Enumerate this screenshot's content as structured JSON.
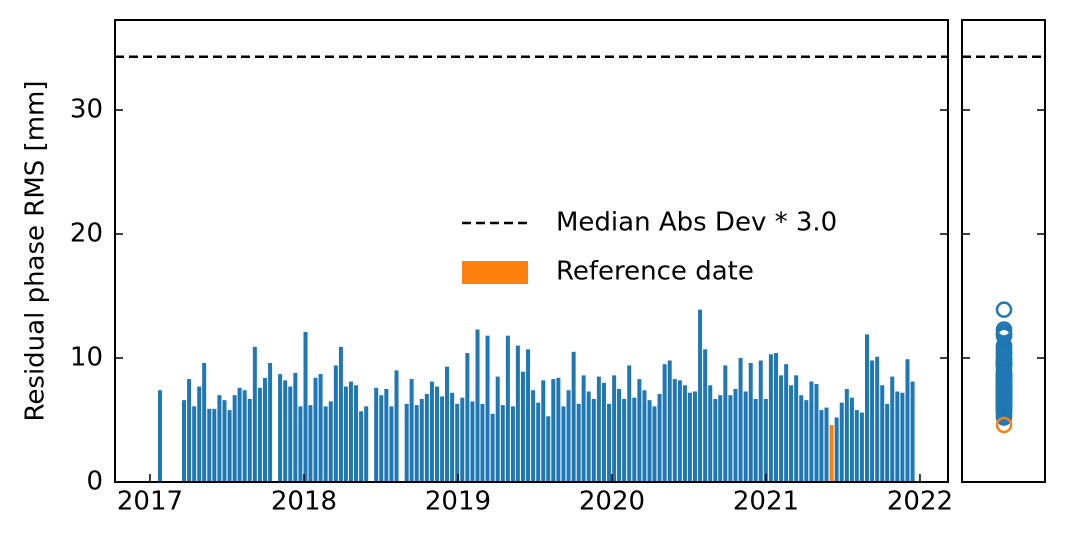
{
  "chart_data": {
    "type": "bar",
    "ylabel": "Residual phase RMS [mm]",
    "xlim": [
      2016.773,
      2022.182
    ],
    "ylim": [
      0,
      37.26
    ],
    "xticks": [
      2017,
      2018,
      2019,
      2020,
      2021,
      2022
    ],
    "yticks": [
      0,
      10,
      20,
      30
    ],
    "color": "#1f77b4",
    "x": [
      2017.065,
      2017.221,
      2017.254,
      2017.287,
      2017.32,
      2017.352,
      2017.385,
      2017.418,
      2017.451,
      2017.484,
      2017.517,
      2017.55,
      2017.582,
      2017.615,
      2017.648,
      2017.681,
      2017.714,
      2017.747,
      2017.78,
      2017.845,
      2017.878,
      2017.911,
      2017.944,
      2017.977,
      2018.01,
      2018.042,
      2018.075,
      2018.108,
      2018.141,
      2018.174,
      2018.207,
      2018.24,
      2018.272,
      2018.305,
      2018.338,
      2018.371,
      2018.404,
      2018.469,
      2018.502,
      2018.535,
      2018.568,
      2018.601,
      2018.667,
      2018.699,
      2018.732,
      2018.765,
      2018.798,
      2018.831,
      2018.864,
      2018.897,
      2018.929,
      2018.962,
      2018.995,
      2019.028,
      2019.061,
      2019.094,
      2019.127,
      2019.159,
      2019.192,
      2019.225,
      2019.258,
      2019.291,
      2019.324,
      2019.357,
      2019.389,
      2019.422,
      2019.455,
      2019.488,
      2019.521,
      2019.554,
      2019.586,
      2019.619,
      2019.652,
      2019.685,
      2019.718,
      2019.751,
      2019.784,
      2019.816,
      2019.849,
      2019.882,
      2019.915,
      2019.948,
      2019.981,
      2020.014,
      2020.046,
      2020.079,
      2020.112,
      2020.145,
      2020.178,
      2020.211,
      2020.244,
      2020.276,
      2020.309,
      2020.342,
      2020.375,
      2020.408,
      2020.441,
      2020.474,
      2020.506,
      2020.539,
      2020.572,
      2020.605,
      2020.638,
      2020.671,
      2020.703,
      2020.736,
      2020.769,
      2020.802,
      2020.835,
      2020.868,
      2020.901,
      2020.933,
      2020.966,
      2020.999,
      2021.032,
      2021.065,
      2021.098,
      2021.131,
      2021.163,
      2021.196,
      2021.229,
      2021.262,
      2021.295,
      2021.328,
      2021.36,
      2021.393,
      2021.459,
      2021.492,
      2021.525,
      2021.558,
      2021.59,
      2021.623,
      2021.656,
      2021.689,
      2021.722,
      2021.755,
      2021.787,
      2021.82,
      2021.853,
      2021.886,
      2021.919,
      2021.952
    ],
    "values": [
      7.4,
      6.6,
      8.3,
      6.1,
      7.7,
      9.6,
      5.9,
      5.9,
      7.0,
      6.6,
      5.8,
      7.0,
      7.6,
      7.4,
      6.7,
      10.9,
      7.6,
      8.4,
      9.6,
      8.7,
      8.2,
      7.7,
      8.8,
      6.1,
      12.1,
      6.2,
      8.4,
      8.7,
      6.1,
      6.5,
      9.4,
      10.9,
      7.7,
      8.1,
      7.8,
      5.7,
      6.1,
      7.6,
      7.0,
      7.5,
      6.1,
      9.0,
      6.3,
      8.3,
      6.2,
      6.7,
      7.1,
      8.1,
      7.7,
      6.9,
      9.3,
      7.2,
      6.3,
      6.8,
      10.4,
      6.5,
      12.3,
      6.3,
      11.8,
      5.5,
      8.5,
      6.2,
      11.8,
      6.1,
      11.0,
      8.9,
      10.7,
      7.4,
      6.4,
      8.2,
      5.3,
      8.3,
      8.4,
      6.1,
      7.4,
      10.5,
      6.3,
      8.6,
      7.3,
      6.7,
      8.5,
      8.0,
      6.3,
      8.6,
      7.5,
      6.7,
      9.4,
      6.8,
      8.3,
      7.4,
      6.6,
      6.1,
      7.1,
      9.5,
      9.8,
      8.3,
      8.2,
      7.8,
      7.2,
      7.3,
      13.9,
      10.7,
      7.8,
      6.7,
      7.0,
      9.4,
      7.0,
      7.5,
      10.0,
      7.3,
      9.6,
      6.7,
      9.8,
      6.7,
      10.3,
      10.4,
      8.6,
      9.5,
      7.8,
      8.6,
      7.0,
      6.6,
      8.1,
      7.9,
      5.8,
      6.0,
      5.2,
      6.4,
      7.5,
      6.8,
      5.8,
      5.6,
      11.9,
      9.8,
      10.1,
      7.8,
      6.3,
      8.5,
      7.3,
      7.2,
      9.9,
      8.1
    ],
    "reference": {
      "name": "Reference date",
      "color": "#ff7f0e",
      "x": [
        2021.426
      ],
      "values": [
        4.6
      ]
    },
    "threshold": {
      "name": "Median Abs Dev * 3.0",
      "value": 34.3,
      "color": "#000000",
      "style": "dashed"
    }
  }
}
